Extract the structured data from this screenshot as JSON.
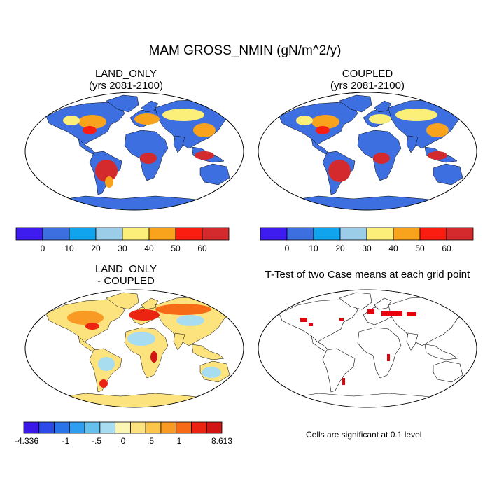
{
  "title": "MAM GROSS_NMIN (gN/m^2/y)",
  "panels": [
    {
      "title_line1": "LAND_ONLY",
      "title_line2": "(yrs 2081-2100)"
    },
    {
      "title_line1": "COUPLED",
      "title_line2": "(yrs 2081-2100)"
    },
    {
      "title_line1": "LAND_ONLY",
      "title_line2": "- COUPLED"
    },
    {
      "title_line1": "T-Test of two Case means at each grid point",
      "title_line2": ""
    }
  ],
  "colorbar_abs": {
    "colors": [
      "#3e1cf0",
      "#3d6fe0",
      "#10a4ee",
      "#9ccde8",
      "#fbef79",
      "#f9a31c",
      "#fb1e10",
      "#d42a2e"
    ],
    "labels": [
      "0",
      "10",
      "20",
      "30",
      "40",
      "50",
      "60"
    ]
  },
  "colorbar_diff": {
    "colors": [
      "#3b17e8",
      "#2b4ae7",
      "#2a74ea",
      "#2f9ef0",
      "#66c0ec",
      "#a8dcf0",
      "#fbf6b4",
      "#fde37e",
      "#fbc64a",
      "#f99a24",
      "#f76a16",
      "#ea2410",
      "#d11414"
    ],
    "labels": [
      "-4.336",
      "-1",
      "-.5",
      "0",
      ".5",
      "1",
      "8.613"
    ]
  },
  "ttest_note": "Cells are significant at 0.1 level"
}
